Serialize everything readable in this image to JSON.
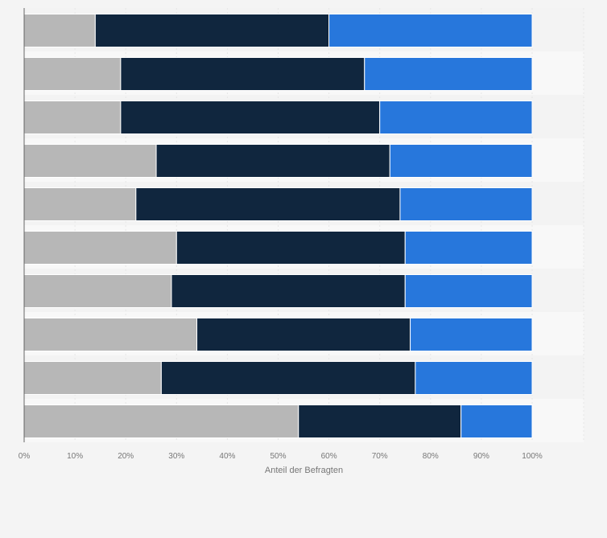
{
  "chart_data": {
    "type": "bar",
    "orientation": "horizontal",
    "stacked": true,
    "title": "",
    "xlabel": "Anteil der Befragten",
    "ylabel": "",
    "xlim": [
      0,
      100
    ],
    "x_ticks": [
      "0%",
      "10%",
      "20%",
      "30%",
      "40%",
      "50%",
      "60%",
      "70%",
      "80%",
      "90%",
      "100%"
    ],
    "grid": true,
    "categories": [
      "",
      "",
      "",
      "",
      "",
      "",
      "",
      "",
      "",
      ""
    ],
    "series": [
      {
        "color": "#b7b7b7",
        "values": [
          14,
          19,
          19,
          26,
          22,
          30,
          29,
          34,
          27,
          54
        ]
      },
      {
        "color": "#10263e",
        "values": [
          46,
          48,
          51,
          46,
          52,
          45,
          46,
          42,
          50,
          32
        ]
      },
      {
        "color": "#2777dc",
        "values": [
          40,
          33,
          30,
          28,
          26,
          25,
          25,
          24,
          23,
          14
        ]
      }
    ]
  }
}
